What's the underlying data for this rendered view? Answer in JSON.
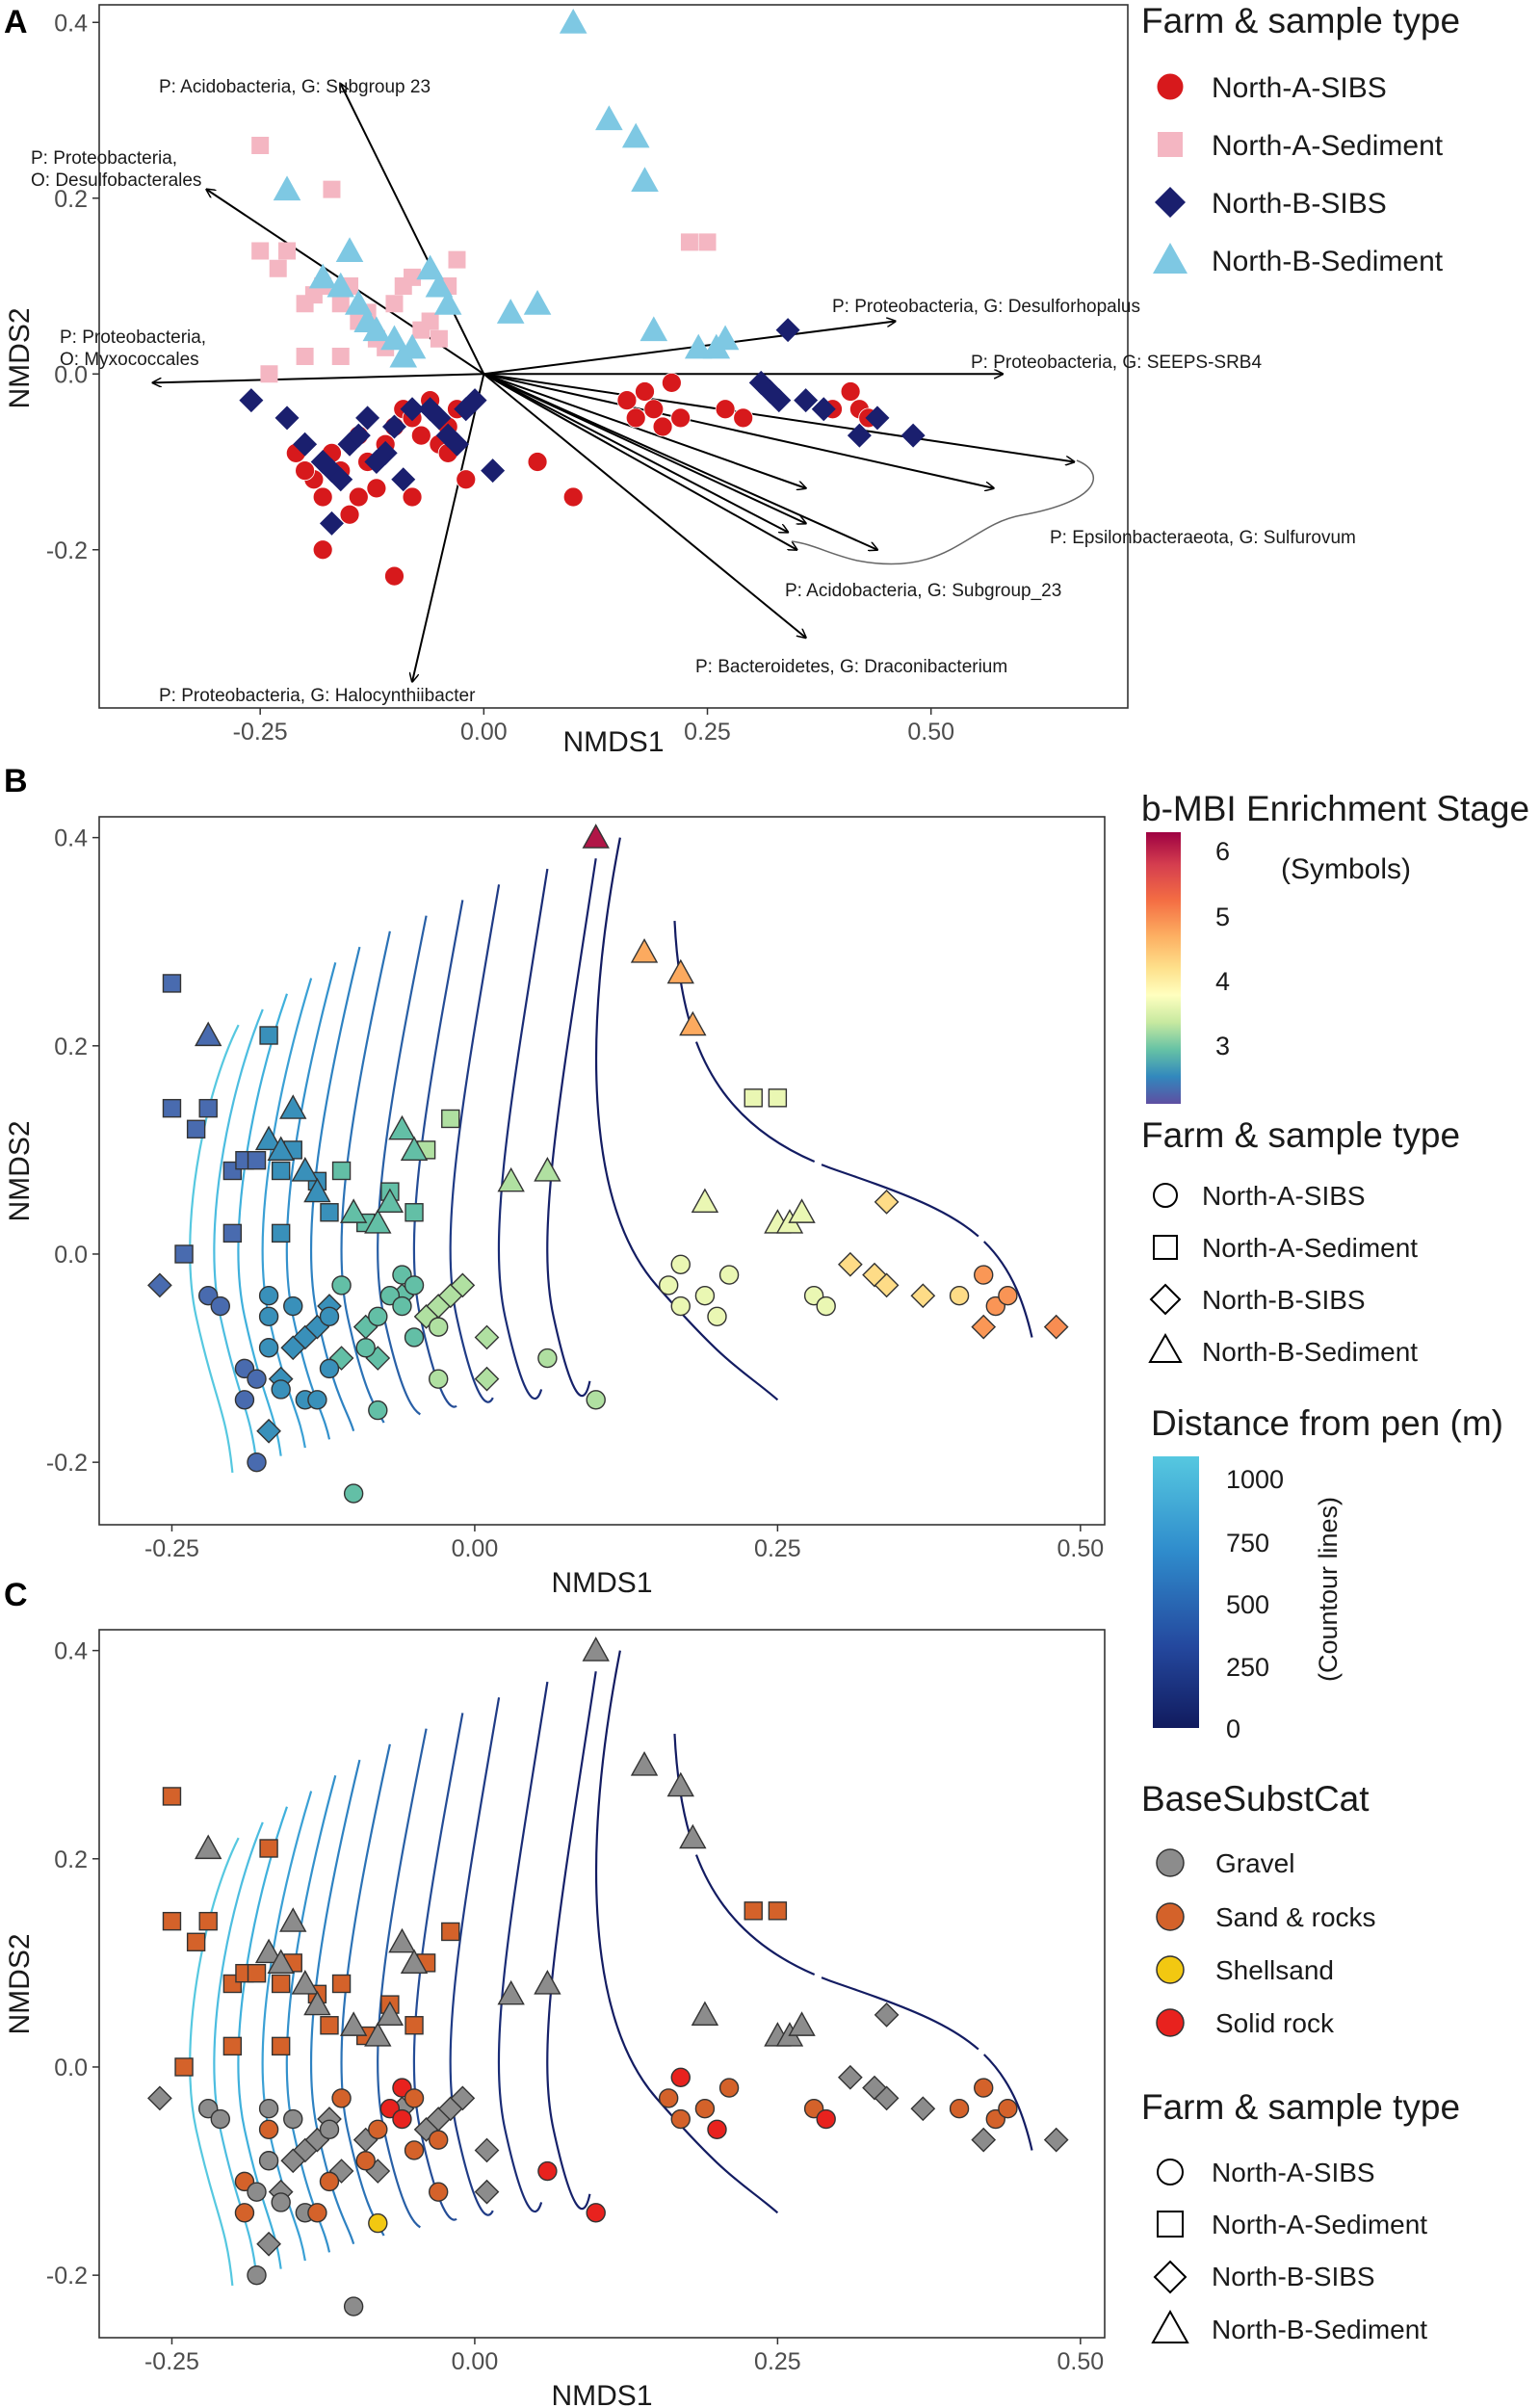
{
  "chart_data": [
    {
      "type": "scatter",
      "panel": "A",
      "xlabel": "NMDS1",
      "ylabel": "NMDS2",
      "xlim": [
        -0.43,
        0.72
      ],
      "ylim": [
        -0.38,
        0.42
      ],
      "xticks": [
        -0.25,
        0.0,
        0.25,
        0.5
      ],
      "xtick_labels": [
        "-0.25",
        "0.00",
        "0.25",
        "0.50"
      ],
      "yticks": [
        -0.2,
        0.0,
        0.2,
        0.4
      ],
      "ytick_labels": [
        "-0.2",
        "0.0",
        "0.2",
        "0.4"
      ],
      "legend_title": "Farm & sample type",
      "legend": [
        "North-A-SIBS",
        "North-A-Sediment",
        "North-B-SIBS",
        "North-B-Sediment"
      ],
      "colors": {
        "North-A-SIBS": "#d7191c",
        "North-A-Sediment": "#f4b6c2",
        "North-B-SIBS": "#1a1f6e",
        "North-B-Sediment": "#7ec8e3"
      },
      "series": [
        {
          "name": "North-A-SIBS",
          "marker": "circle",
          "points": [
            [
              -0.21,
              -0.09
            ],
            [
              -0.19,
              -0.12
            ],
            [
              -0.18,
              -0.14
            ],
            [
              -0.17,
              -0.09
            ],
            [
              -0.16,
              -0.11
            ],
            [
              -0.15,
              -0.16
            ],
            [
              -0.14,
              -0.14
            ],
            [
              -0.13,
              -0.1
            ],
            [
              -0.12,
              -0.13
            ],
            [
              -0.11,
              -0.08
            ],
            [
              -0.1,
              -0.06
            ],
            [
              -0.09,
              -0.04
            ],
            [
              -0.08,
              -0.05
            ],
            [
              -0.07,
              -0.07
            ],
            [
              -0.06,
              -0.03
            ],
            [
              -0.05,
              -0.08
            ],
            [
              -0.04,
              -0.06
            ],
            [
              -0.03,
              -0.04
            ],
            [
              -0.02,
              -0.12
            ],
            [
              -0.1,
              -0.23
            ],
            [
              -0.18,
              -0.2
            ],
            [
              -0.2,
              -0.11
            ],
            [
              -0.14,
              -0.07
            ],
            [
              -0.08,
              -0.14
            ],
            [
              -0.04,
              -0.09
            ],
            [
              0.06,
              -0.1
            ],
            [
              0.1,
              -0.14
            ],
            [
              0.16,
              -0.03
            ],
            [
              0.17,
              -0.05
            ],
            [
              0.18,
              -0.02
            ],
            [
              0.19,
              -0.04
            ],
            [
              0.2,
              -0.06
            ],
            [
              0.21,
              -0.01
            ],
            [
              0.27,
              -0.04
            ],
            [
              0.29,
              -0.05
            ],
            [
              0.39,
              -0.04
            ],
            [
              0.42,
              -0.04
            ],
            [
              0.43,
              -0.05
            ],
            [
              0.41,
              -0.02
            ],
            [
              0.22,
              -0.05
            ]
          ]
        },
        {
          "name": "North-A-Sediment",
          "marker": "square",
          "points": [
            [
              -0.25,
              0.26
            ],
            [
              -0.25,
              0.14
            ],
            [
              -0.23,
              0.12
            ],
            [
              -0.22,
              0.14
            ],
            [
              -0.2,
              0.08
            ],
            [
              -0.19,
              0.09
            ],
            [
              -0.18,
              0.1
            ],
            [
              -0.17,
              0.21
            ],
            [
              -0.16,
              0.08
            ],
            [
              -0.15,
              0.1
            ],
            [
              -0.14,
              0.06
            ],
            [
              -0.13,
              0.07
            ],
            [
              -0.12,
              0.04
            ],
            [
              -0.11,
              0.03
            ],
            [
              -0.1,
              0.08
            ],
            [
              -0.09,
              0.1
            ],
            [
              -0.08,
              0.11
            ],
            [
              -0.07,
              0.05
            ],
            [
              -0.06,
              0.06
            ],
            [
              -0.05,
              0.04
            ],
            [
              -0.04,
              0.1
            ],
            [
              -0.03,
              0.13
            ],
            [
              -0.24,
              0.0
            ],
            [
              -0.2,
              0.02
            ],
            [
              0.23,
              0.15
            ],
            [
              0.25,
              0.15
            ],
            [
              -0.16,
              0.02
            ]
          ]
        },
        {
          "name": "North-B-SIBS",
          "marker": "diamond",
          "points": [
            [
              -0.26,
              -0.03
            ],
            [
              -0.22,
              -0.05
            ],
            [
              -0.2,
              -0.08
            ],
            [
              -0.18,
              -0.1
            ],
            [
              -0.17,
              -0.11
            ],
            [
              -0.16,
              -0.12
            ],
            [
              -0.15,
              -0.08
            ],
            [
              -0.14,
              -0.07
            ],
            [
              -0.13,
              -0.05
            ],
            [
              -0.12,
              -0.1
            ],
            [
              -0.11,
              -0.09
            ],
            [
              -0.1,
              -0.06
            ],
            [
              -0.09,
              -0.12
            ],
            [
              -0.08,
              -0.04
            ],
            [
              -0.06,
              -0.04
            ],
            [
              -0.05,
              -0.05
            ],
            [
              -0.04,
              -0.07
            ],
            [
              -0.03,
              -0.08
            ],
            [
              -0.02,
              -0.04
            ],
            [
              -0.01,
              -0.03
            ],
            [
              0.01,
              -0.11
            ],
            [
              -0.17,
              -0.17
            ],
            [
              0.31,
              -0.01
            ],
            [
              0.32,
              -0.02
            ],
            [
              0.33,
              -0.03
            ],
            [
              0.34,
              0.05
            ],
            [
              0.36,
              -0.03
            ],
            [
              0.38,
              -0.04
            ],
            [
              0.42,
              -0.07
            ],
            [
              0.48,
              -0.07
            ],
            [
              0.44,
              -0.05
            ]
          ]
        },
        {
          "name": "North-B-Sediment",
          "marker": "triangle",
          "points": [
            [
              0.1,
              0.4
            ],
            [
              0.14,
              0.29
            ],
            [
              0.17,
              0.27
            ],
            [
              0.18,
              0.22
            ],
            [
              -0.22,
              0.21
            ],
            [
              -0.15,
              0.14
            ],
            [
              -0.18,
              0.11
            ],
            [
              -0.16,
              0.1
            ],
            [
              -0.14,
              0.08
            ],
            [
              -0.13,
              0.06
            ],
            [
              -0.12,
              0.05
            ],
            [
              -0.1,
              0.04
            ],
            [
              -0.09,
              0.02
            ],
            [
              -0.06,
              0.12
            ],
            [
              -0.05,
              0.1
            ],
            [
              -0.04,
              0.08
            ],
            [
              0.03,
              0.07
            ],
            [
              0.06,
              0.08
            ],
            [
              0.19,
              0.05
            ],
            [
              0.24,
              0.03
            ],
            [
              0.26,
              0.03
            ],
            [
              0.27,
              0.04
            ],
            [
              -0.08,
              0.03
            ]
          ]
        }
      ],
      "arrows": [
        {
          "label": "P: Acidobacteria, G: Subgroup 23",
          "end": [
            -0.16,
            0.33
          ]
        },
        {
          "label": "P: Proteobacteria, O: Desulfobacterales",
          "end": [
            -0.31,
            0.21
          ]
        },
        {
          "label": "P: Proteobacteria, O: Myxococcales",
          "end": [
            -0.37,
            -0.01
          ]
        },
        {
          "label": "P: Proteobacteria, G: Desulforhopalus",
          "end": [
            0.46,
            0.06
          ]
        },
        {
          "label": "P: Proteobacteria, G: SEEPS-SRB4",
          "end": [
            0.58,
            0.0
          ]
        },
        {
          "label": "P: Epsilonbacteraeota, G: Sulfurovum",
          "end": [
            0.66,
            -0.1
          ]
        },
        {
          "label": "",
          "end": [
            0.57,
            -0.13
          ]
        },
        {
          "label": "",
          "end": [
            0.36,
            -0.13
          ]
        },
        {
          "label": "P: Acidobacteria, G: Subgroup_23",
          "end": [
            0.35,
            -0.2
          ]
        },
        {
          "label": "",
          "end": [
            0.36,
            -0.17
          ]
        },
        {
          "label": "",
          "end": [
            0.34,
            -0.18
          ]
        },
        {
          "label": "",
          "end": [
            0.44,
            -0.2
          ]
        },
        {
          "label": "P: Bacteroidetes, G: Draconibacterium",
          "end": [
            0.36,
            -0.3
          ]
        },
        {
          "label": "P: Proteobacteria, G: Halocynthiibacter",
          "end": [
            -0.08,
            -0.35
          ]
        }
      ]
    },
    {
      "type": "scatter",
      "panel": "B",
      "xlabel": "NMDS1",
      "ylabel": "NMDS2",
      "xlim": [
        -0.31,
        0.52
      ],
      "ylim": [
        -0.26,
        0.42
      ],
      "xticks": [
        -0.25,
        0.0,
        0.25,
        0.5
      ],
      "xtick_labels": [
        "-0.25",
        "0.00",
        "0.25",
        "0.50"
      ],
      "yticks": [
        -0.2,
        0.0,
        0.2,
        0.4
      ],
      "ytick_labels": [
        "-0.2",
        "0.0",
        "0.2",
        "0.4"
      ],
      "color_by": "b-MBI Enrichment Stage",
      "contours": "Distance from pen (m)"
    },
    {
      "type": "scatter",
      "panel": "C",
      "xlabel": "NMDS1",
      "ylabel": "NMDS2",
      "xlim": [
        -0.31,
        0.52
      ],
      "ylim": [
        -0.26,
        0.42
      ],
      "xticks": [
        -0.25,
        0.0,
        0.25,
        0.5
      ],
      "xtick_labels": [
        "-0.25",
        "0.00",
        "0.25",
        "0.50"
      ],
      "yticks": [
        -0.2,
        0.0,
        0.2,
        0.4
      ],
      "ytick_labels": [
        "-0.2",
        "0.0",
        "0.2",
        "0.4"
      ],
      "color_by": "BaseSubstCat",
      "contours": "Distance from pen (m)"
    }
  ],
  "panels": {
    "a": "A",
    "b": "B",
    "c": "C"
  },
  "axis": {
    "x": "NMDS1",
    "y": "NMDS2"
  },
  "legend_a": {
    "title": "Farm & sample type",
    "items": [
      "North-A-SIBS",
      "North-A-Sediment",
      "North-B-SIBS",
      "North-B-Sediment"
    ]
  },
  "legend_mbi": {
    "title": "b-MBI Enrichment Stage",
    "subtitle": "(Symbols)",
    "ticks": [
      "6",
      "5",
      "4",
      "3"
    ],
    "range": [
      2.2,
      6.3
    ]
  },
  "legend_shape_b": {
    "title": "Farm & sample type",
    "items": [
      "North-A-SIBS",
      "North-A-Sediment",
      "North-B-SIBS",
      "North-B-Sediment"
    ]
  },
  "legend_dist": {
    "title": "Distance from pen (m)",
    "subtitle": "(Countour lines)",
    "ticks": [
      "1000",
      "750",
      "500",
      "250",
      "0"
    ]
  },
  "legend_subst": {
    "title": "BaseSubstCat",
    "items": [
      "Gravel",
      "Sand & rocks",
      "Shellsand",
      "Solid rock"
    ],
    "colors": [
      "#8c8c8c",
      "#d4622a",
      "#f2c811",
      "#e8221e"
    ]
  },
  "legend_shape_c": {
    "title": "Farm & sample type",
    "items": [
      "North-A-SIBS",
      "North-A-Sediment",
      "North-B-SIBS",
      "North-B-Sediment"
    ]
  }
}
